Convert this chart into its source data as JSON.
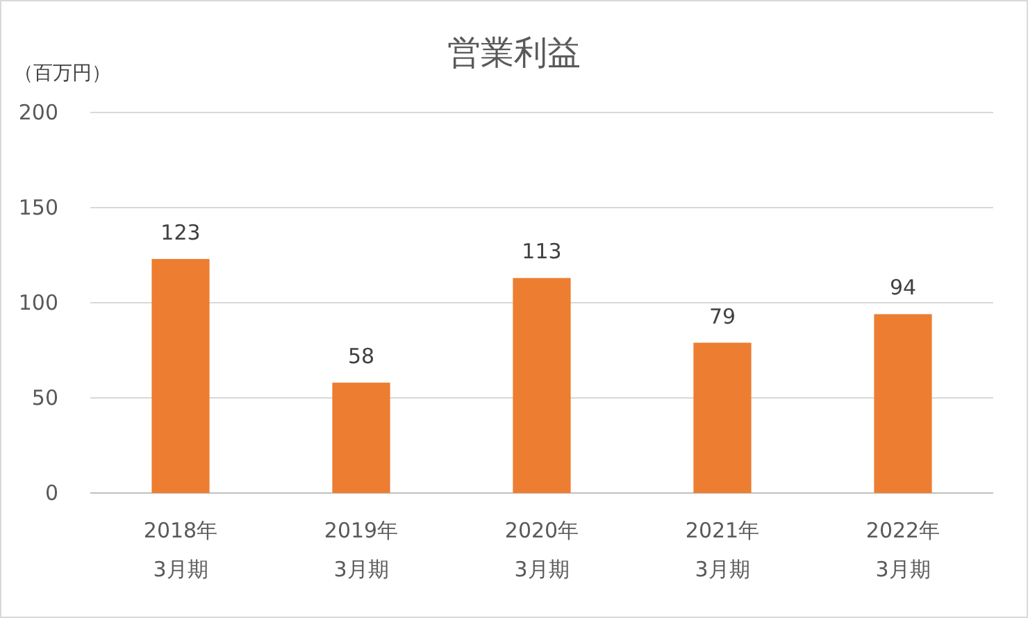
{
  "chart_data": {
    "type": "bar",
    "title": "営業利益",
    "ylabel": "（百万円）",
    "categories": [
      "2018年\n3月期",
      "2019年\n3月期",
      "2020年\n3月期",
      "2021年\n3月期",
      "2022年\n3月期"
    ],
    "values": [
      123,
      58,
      113,
      79,
      94
    ],
    "color": "#ed7d31",
    "data_labels": true,
    "ylim": [
      0,
      200
    ],
    "yticks": [
      0,
      50,
      100,
      150,
      200
    ],
    "grid": "y"
  }
}
